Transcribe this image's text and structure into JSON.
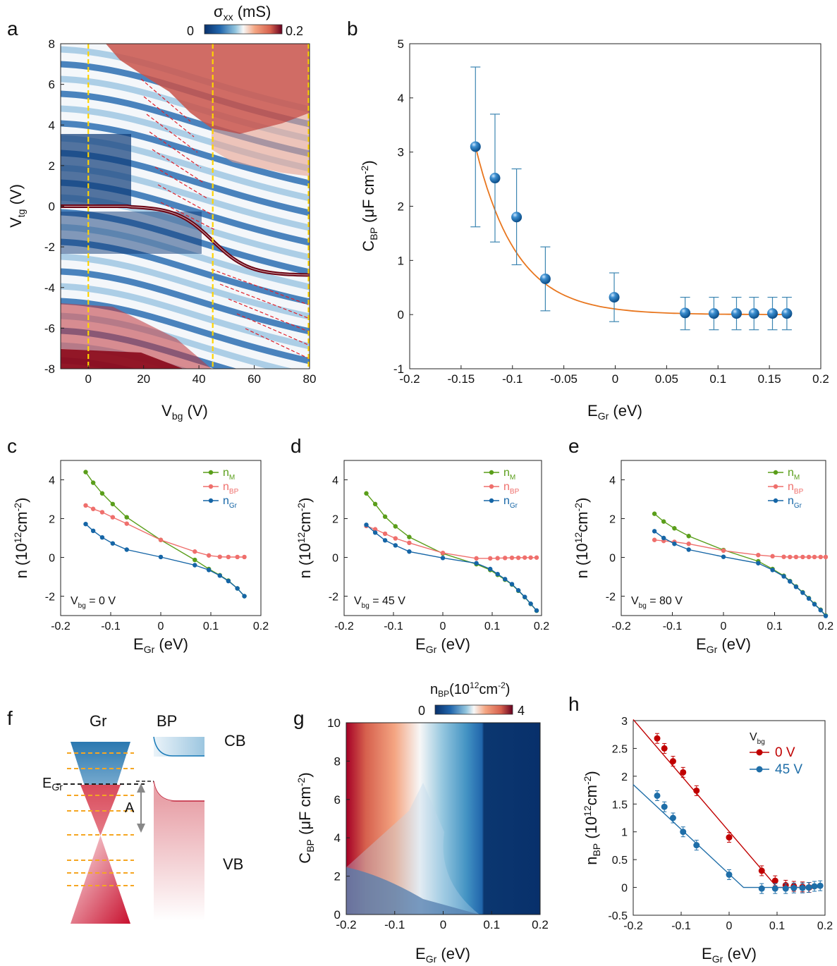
{
  "panels": {
    "a": "a",
    "b": "b",
    "c": "c",
    "d": "d",
    "e": "e",
    "f": "f",
    "g": "g",
    "h": "h"
  },
  "colorbar_a": {
    "label": "σ",
    "label_sub": "xx",
    "unit": " (mS)",
    "min": "0",
    "max": "0.2"
  },
  "colorbar_g": {
    "label": "n",
    "label_sub": "BP",
    "unit": "(10",
    "unit_sup": "12",
    "unit_end": "cm",
    "unit_sup2": "-2",
    "unit_close": ")",
    "min": "0",
    "max": "4"
  },
  "schematic_f": {
    "gr_label": "Gr",
    "bp_label": "BP",
    "cb_label": "CB",
    "vb_label": "VB",
    "egr_label": "E",
    "egr_sub": "Gr",
    "a_label": "A"
  },
  "chart_data": [
    {
      "id": "a",
      "type": "heatmap",
      "xlabel": "V",
      "xlabel_sub": "bg",
      "xlabel_unit": " (V)",
      "ylabel": "V",
      "ylabel_sub": "tg",
      "ylabel_unit": " (V)",
      "xlim": [
        -10,
        80
      ],
      "ylim": [
        -8,
        8
      ],
      "xticks": [
        "0",
        "20",
        "40",
        "60",
        "80"
      ],
      "yticks": [
        "-8",
        "-6",
        "-4",
        "-2",
        "0",
        "2",
        "4",
        "6",
        "8"
      ],
      "vlines_vbg": [
        0,
        45,
        80
      ]
    },
    {
      "id": "b",
      "type": "scatter",
      "xlabel": "E",
      "xlabel_sub": "Gr",
      "xlabel_unit": " (eV)",
      "ylabel": "C",
      "ylabel_sub": "BP",
      "ylabel_unit": " (μF cm",
      "ylabel_sup": "-2",
      "ylabel_close": ")",
      "xlim": [
        -0.2,
        0.2
      ],
      "ylim": [
        -1,
        5
      ],
      "xticks": [
        "-0.2",
        "-0.15",
        "-0.1",
        "-0.05",
        "0",
        "0.05",
        "0.1",
        "0.15",
        "0.2"
      ],
      "yticks": [
        "-1",
        "0",
        "1",
        "2",
        "3",
        "4",
        "5"
      ],
      "x": [
        -0.136,
        -0.117,
        -0.096,
        -0.068,
        -0.001,
        0.068,
        0.096,
        0.118,
        0.135,
        0.153,
        0.167
      ],
      "y": [
        3.1,
        2.52,
        1.8,
        0.66,
        0.32,
        0.03,
        0.02,
        0.02,
        0.02,
        0.02,
        0.02
      ],
      "yerr_hi": [
        4.57,
        3.7,
        2.69,
        1.25,
        0.77,
        0.32,
        0.32,
        0.32,
        0.32,
        0.32,
        0.32
      ],
      "yerr_lo": [
        1.62,
        1.34,
        0.92,
        0.07,
        -0.13,
        -0.28,
        -0.28,
        -0.28,
        -0.28,
        -0.28,
        -0.28
      ]
    },
    {
      "id": "c",
      "type": "line",
      "xlabel": "E",
      "xlabel_sub": "Gr",
      "xlabel_unit": " (eV)",
      "ylabel": "n (10",
      "ylabel_sup": "12",
      "ylabel_mid": "cm",
      "ylabel_sup2": "-2",
      "ylabel_close": ")",
      "xlim": [
        -0.2,
        0.2
      ],
      "ylim": [
        -3,
        5
      ],
      "xticks": [
        "-0.2",
        "-0.1",
        "0",
        "0.1",
        "0.2"
      ],
      "yticks": [
        "-2",
        "0",
        "2",
        "4"
      ],
      "annotation": {
        "text": "V",
        "sub": "bg",
        "rest": " = 0 V"
      },
      "series": [
        {
          "name": "n",
          "sub": "M",
          "color": "#5a9e1a",
          "x": [
            -0.15,
            -0.135,
            -0.117,
            -0.096,
            -0.068,
            0,
            0.068,
            0.096,
            0.118,
            0.135,
            0.153,
            0.167
          ],
          "y": [
            4.4,
            3.85,
            3.3,
            2.75,
            2.07,
            0.9,
            -0.13,
            -0.6,
            -0.92,
            -1.2,
            -1.6,
            -2.0
          ]
        },
        {
          "name": "n",
          "sub": "BP",
          "color": "#ef6f6c",
          "x": [
            -0.15,
            -0.135,
            -0.117,
            -0.096,
            -0.068,
            0,
            0.068,
            0.096,
            0.118,
            0.135,
            0.153,
            0.167
          ],
          "y": [
            2.68,
            2.5,
            2.33,
            2.07,
            1.74,
            0.9,
            0.3,
            0.1,
            0.03,
            0.02,
            0.02,
            0.02
          ]
        },
        {
          "name": "n",
          "sub": "Gr",
          "color": "#1565a6",
          "x": [
            -0.15,
            -0.135,
            -0.117,
            -0.096,
            -0.068,
            0,
            0.068,
            0.096,
            0.118,
            0.135,
            0.153,
            0.167
          ],
          "y": [
            1.72,
            1.37,
            1.03,
            0.72,
            0.4,
            0.02,
            -0.4,
            -0.65,
            -0.94,
            -1.22,
            -1.6,
            -2.0
          ]
        }
      ]
    },
    {
      "id": "d",
      "type": "line",
      "xlabel": "E",
      "xlabel_sub": "Gr",
      "xlabel_unit": " (eV)",
      "ylabel": "n (10",
      "ylabel_sup": "12",
      "ylabel_mid": "cm",
      "ylabel_sup2": "-2",
      "ylabel_close": ")",
      "xlim": [
        -0.2,
        0.2
      ],
      "ylim": [
        -3,
        5
      ],
      "xticks": [
        "-0.2",
        "-0.1",
        "0",
        "0.1",
        "0.2"
      ],
      "yticks": [
        "-2",
        "0",
        "2",
        "4"
      ],
      "annotation": {
        "text": "V",
        "sub": "bg",
        "rest": " = 45 V"
      },
      "series": [
        {
          "name": "n",
          "sub": "M",
          "color": "#5a9e1a",
          "x": [
            -0.155,
            -0.137,
            -0.117,
            -0.096,
            -0.068,
            0,
            0.068,
            0.096,
            0.111,
            0.126,
            0.14,
            0.153,
            0.166,
            0.178,
            0.19
          ],
          "y": [
            3.3,
            2.75,
            2.1,
            1.6,
            1.05,
            0.2,
            -0.35,
            -0.65,
            -0.9,
            -1.15,
            -1.4,
            -1.72,
            -2.05,
            -2.4,
            -2.75
          ]
        },
        {
          "name": "n",
          "sub": "BP",
          "color": "#ef6f6c",
          "x": [
            -0.155,
            -0.137,
            -0.117,
            -0.096,
            -0.068,
            0,
            0.068,
            0.096,
            0.111,
            0.126,
            0.14,
            0.153,
            0.166,
            0.178,
            0.19
          ],
          "y": [
            1.62,
            1.45,
            1.22,
            0.98,
            0.75,
            0.23,
            -0.05,
            -0.05,
            -0.04,
            -0.03,
            -0.02,
            -0.02,
            -0.01,
            -0.01,
            -0.01
          ]
        },
        {
          "name": "n",
          "sub": "Gr",
          "color": "#1565a6",
          "x": [
            -0.155,
            -0.137,
            -0.117,
            -0.096,
            -0.068,
            0,
            0.068,
            0.096,
            0.111,
            0.126,
            0.14,
            0.153,
            0.166,
            0.178,
            0.19
          ],
          "y": [
            1.68,
            1.28,
            0.88,
            0.62,
            0.3,
            -0.03,
            -0.3,
            -0.6,
            -0.86,
            -1.12,
            -1.38,
            -1.7,
            -2.04,
            -2.39,
            -2.74
          ]
        }
      ]
    },
    {
      "id": "e",
      "type": "line",
      "xlabel": "E",
      "xlabel_sub": "Gr",
      "xlabel_unit": " (eV)",
      "ylabel": "n (10",
      "ylabel_sup": "12",
      "ylabel_mid": "cm",
      "ylabel_sup2": "-2",
      "ylabel_close": ")",
      "xlim": [
        -0.2,
        0.2
      ],
      "ylim": [
        -3,
        5
      ],
      "xticks": [
        "-0.2",
        "-0.1",
        "0",
        "0.1",
        "0.2"
      ],
      "yticks": [
        "-2",
        "0",
        "2",
        "4"
      ],
      "annotation": {
        "text": "V",
        "sub": "bg",
        "rest": " = 80 V"
      },
      "series": [
        {
          "name": "n",
          "sub": "M",
          "color": "#5a9e1a",
          "x": [
            -0.135,
            -0.117,
            -0.096,
            -0.068,
            0,
            0.068,
            0.096,
            0.118,
            0.13,
            0.142,
            0.155,
            0.167,
            0.178,
            0.19,
            0.2
          ],
          "y": [
            2.25,
            1.85,
            1.5,
            1.1,
            0.38,
            -0.2,
            -0.6,
            -0.95,
            -1.22,
            -1.5,
            -1.8,
            -2.1,
            -2.4,
            -2.7,
            -3.0
          ]
        },
        {
          "name": "n",
          "sub": "BP",
          "color": "#ef6f6c",
          "x": [
            -0.135,
            -0.117,
            -0.096,
            -0.068,
            0,
            0.068,
            0.096,
            0.118,
            0.13,
            0.142,
            0.155,
            0.167,
            0.178,
            0.19,
            0.2
          ],
          "y": [
            0.9,
            0.85,
            0.8,
            0.7,
            0.35,
            0.12,
            0.06,
            0.03,
            0.02,
            0.02,
            0.02,
            0.02,
            0.02,
            0.02,
            0.02
          ]
        },
        {
          "name": "n",
          "sub": "Gr",
          "color": "#1565a6",
          "x": [
            -0.135,
            -0.117,
            -0.096,
            -0.068,
            0,
            0.068,
            0.096,
            0.118,
            0.13,
            0.142,
            0.155,
            0.167,
            0.178,
            0.19,
            0.2
          ],
          "y": [
            1.35,
            1.0,
            0.7,
            0.4,
            0.03,
            -0.3,
            -0.65,
            -0.98,
            -1.24,
            -1.52,
            -1.82,
            -2.12,
            -2.42,
            -2.72,
            -3.02
          ]
        }
      ]
    },
    {
      "id": "g",
      "type": "heatmap",
      "xlabel": "E",
      "xlabel_sub": "Gr",
      "xlabel_unit": " (eV)",
      "ylabel": "C",
      "ylabel_sub": "BP",
      "ylabel_unit": " (μF cm",
      "ylabel_sup": "-2",
      "ylabel_close": ")",
      "xlim": [
        -0.2,
        0.2
      ],
      "ylim": [
        0,
        10
      ],
      "xticks": [
        "-0.2",
        "-0.1",
        "0",
        "0.1",
        "0.2"
      ],
      "yticks": [
        "0",
        "2",
        "4",
        "6",
        "8",
        "10"
      ]
    },
    {
      "id": "h",
      "type": "scatter",
      "xlabel": "E",
      "xlabel_sub": "Gr",
      "xlabel_unit": " (eV)",
      "ylabel": "n",
      "ylabel_sub": "BP",
      "ylabel_unit": " (10",
      "ylabel_sup": "12",
      "ylabel_mid": "cm",
      "ylabel_sup2": "-2",
      "ylabel_close": ")",
      "xlim": [
        -0.2,
        0.2
      ],
      "ylim": [
        -0.5,
        3
      ],
      "xticks": [
        "-0.2",
        "-0.1",
        "0",
        "0.1",
        "0.2"
      ],
      "yticks": [
        "-0.5",
        "0",
        "0.5",
        "1",
        "1.5",
        "2",
        "2.5",
        "3"
      ],
      "legend_title": {
        "text": "V",
        "sub": "bg"
      },
      "series": [
        {
          "name": "0 V",
          "color": "#c00000",
          "x": [
            -0.15,
            -0.135,
            -0.117,
            -0.096,
            -0.068,
            0,
            0.068,
            0.096,
            0.118,
            0.135,
            0.153,
            0.167
          ],
          "y": [
            2.68,
            2.5,
            2.27,
            2.07,
            1.74,
            0.9,
            0.3,
            0.12,
            0.04,
            0.02,
            0.01,
            0.0
          ],
          "fit_x": [
            -0.2,
            0.1,
            0.19
          ],
          "fit_y": [
            3.02,
            0.0,
            0.0
          ]
        },
        {
          "name": "45 V",
          "color": "#1f6ea8",
          "x": [
            -0.15,
            -0.135,
            -0.117,
            -0.096,
            -0.068,
            0,
            0.068,
            0.096,
            0.118,
            0.135,
            0.153,
            0.166,
            0.178,
            0.19
          ],
          "y": [
            1.65,
            1.45,
            1.25,
            1.0,
            0.76,
            0.23,
            -0.02,
            -0.02,
            -0.02,
            -0.01,
            -0.01,
            0.0,
            0.02,
            0.03
          ],
          "fit_x": [
            -0.2,
            0.03,
            0.19
          ],
          "fit_y": [
            1.85,
            0.0,
            0.0
          ]
        }
      ]
    }
  ]
}
